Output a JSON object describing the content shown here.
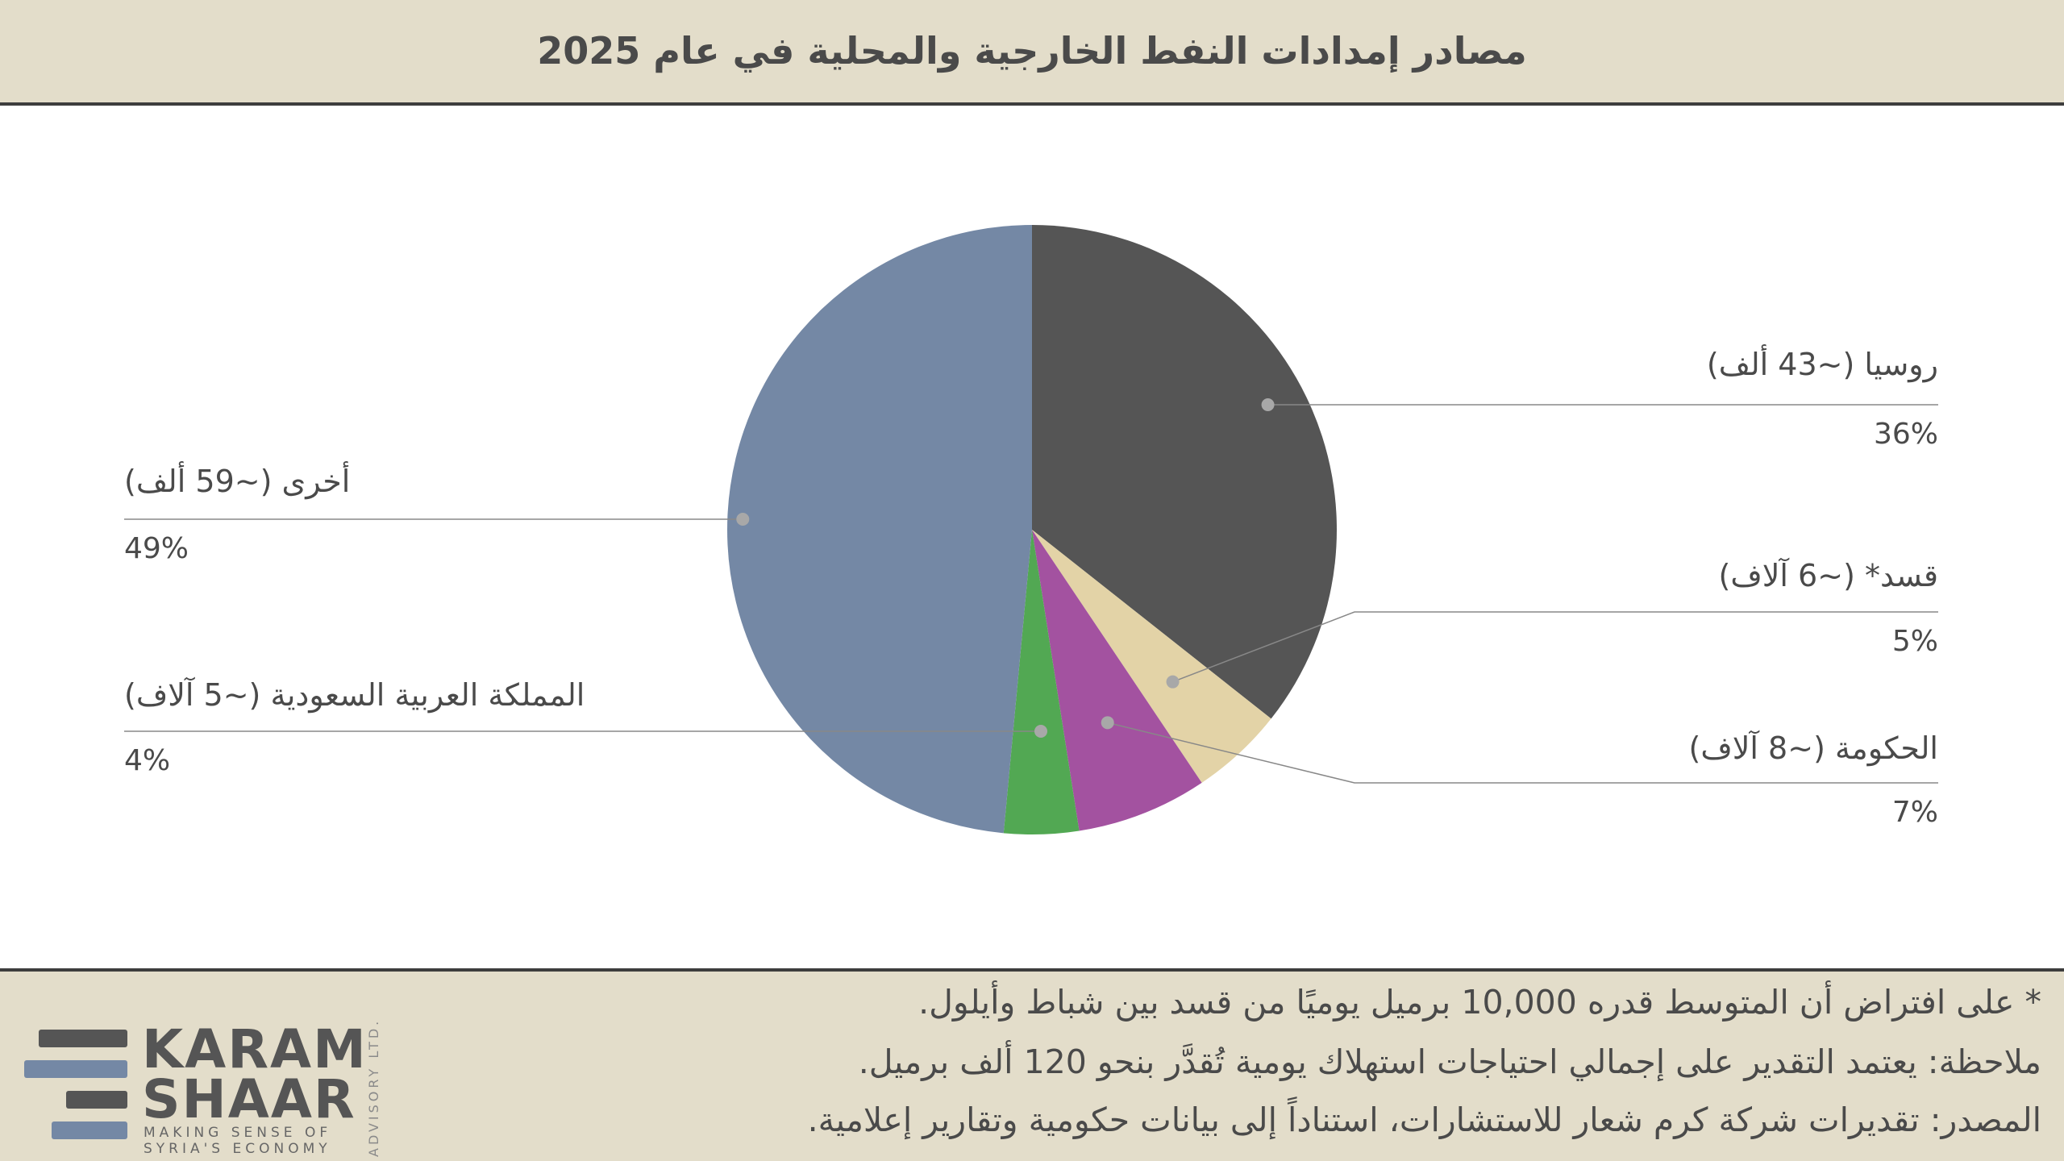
{
  "header": {
    "title": "مصادر إمدادات النفط الخارجية والمحلية في عام 2025"
  },
  "chart_data": {
    "type": "pie",
    "title": "مصادر إمدادات النفط الخارجية والمحلية في عام 2025",
    "slices": [
      {
        "label": "روسيا (~43 ألف)",
        "value": 36,
        "pct_label": "36%",
        "color": "#555555"
      },
      {
        "label": "قسد* (~6 آلاف)",
        "value": 5,
        "pct_label": "5%",
        "color": "#e3d3a7"
      },
      {
        "label": "الحكومة (~8 آلاف)",
        "value": 7,
        "pct_label": "7%",
        "color": "#a352a0"
      },
      {
        "label": "المملكة العربية السعودية (~5 آلاف)",
        "value": 4,
        "pct_label": "4%",
        "color": "#52a853"
      },
      {
        "label": "أخرى (~59 ألف)",
        "value": 49,
        "pct_label": "49%",
        "color": "#7488a5"
      }
    ]
  },
  "footer": {
    "line1": "* على افتراض أن المتوسط قدره 10,000 برميل يوميًا من قسد بين شباط وأيلول.",
    "line2": "ملاحظة: يعتمد التقدير على إجمالي احتياجات استهلاك يومية تُقدَّر بنحو 120 ألف برميل.",
    "line3": "المصدر: تقديرات شركة كرم شعار للاستشارات، استناداً إلى بيانات حكومية وتقارير إعلامية.",
    "logo": {
      "word1": "KARAM",
      "word2": "SHAAR",
      "tagline1": "MAKING SENSE OF",
      "tagline2": "SYRIA'S ECONOMY",
      "vertical": "ADVISORY LTD."
    }
  },
  "colors": {
    "band": "#e3ddca",
    "rule": "#3d3d3d",
    "leader": "#888888",
    "logo_dark": "#555555",
    "logo_blue": "#7488a5"
  }
}
